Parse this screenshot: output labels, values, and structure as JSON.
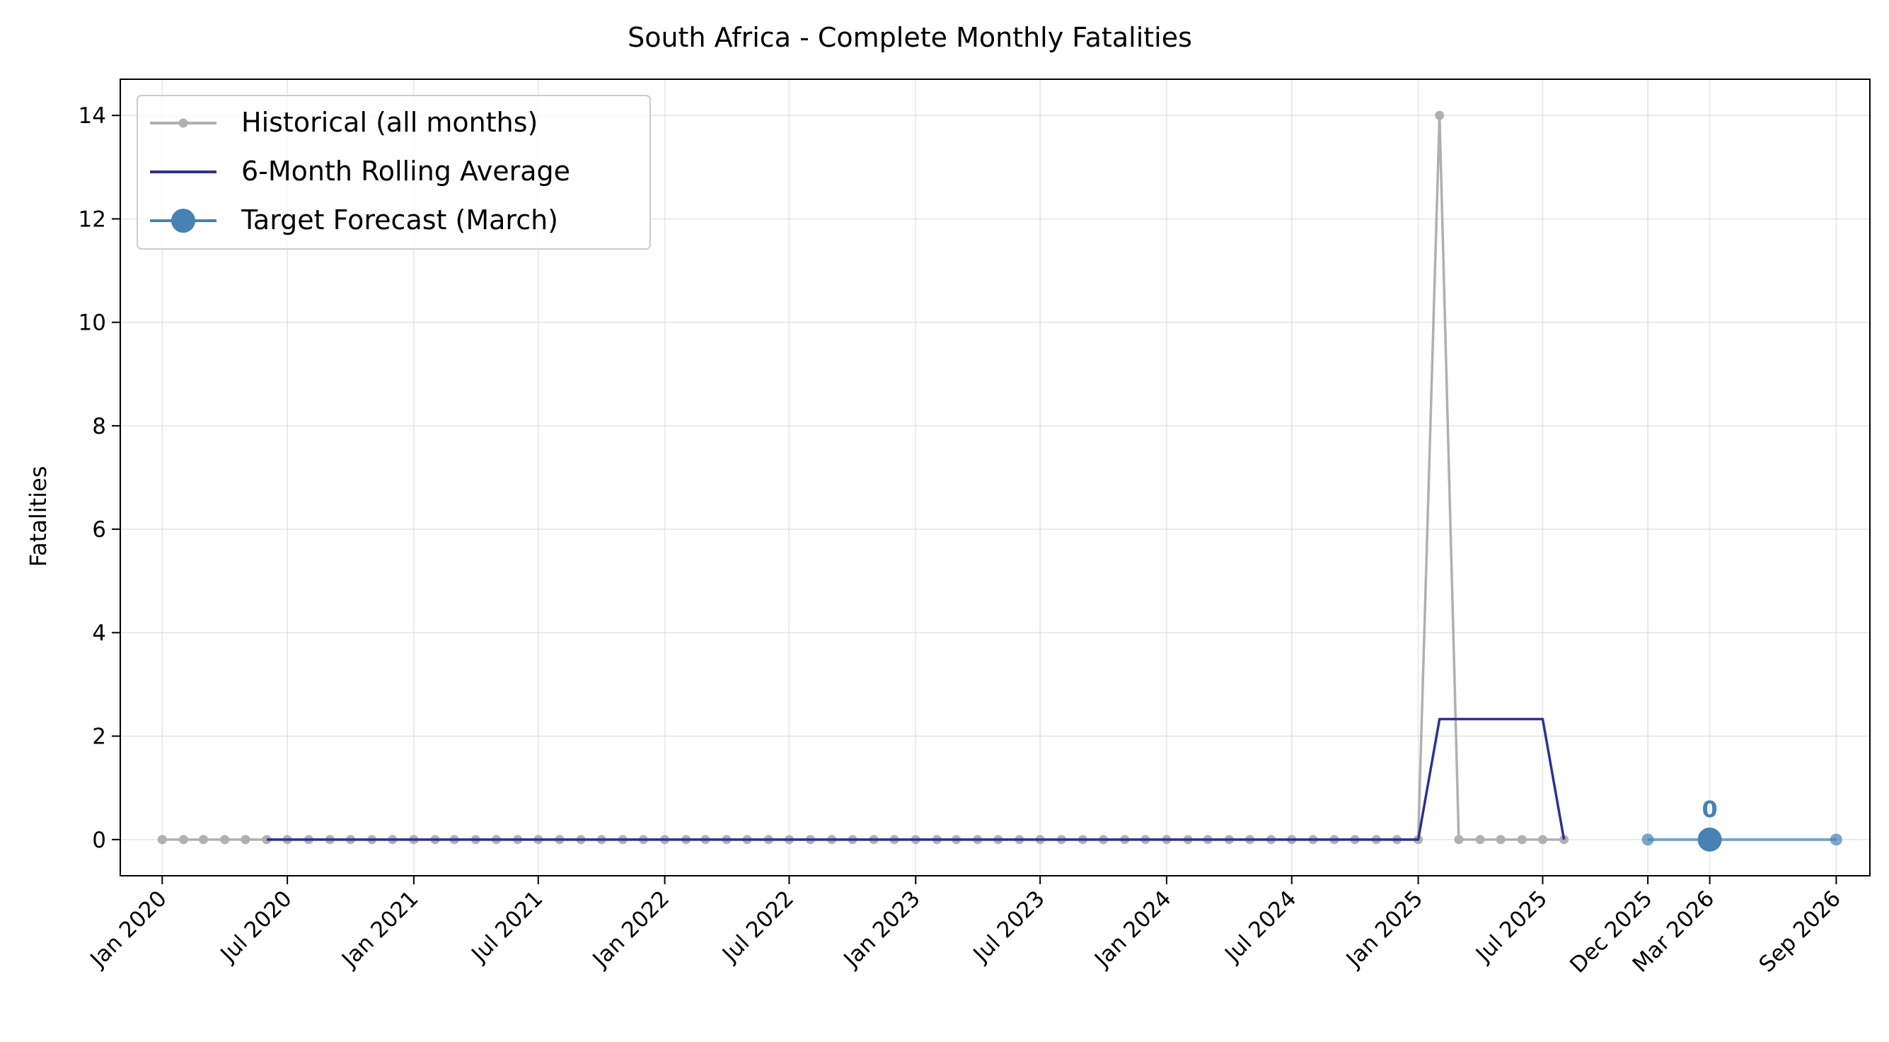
{
  "chart_data": {
    "type": "line",
    "title": "South Africa - Complete Monthly Fatalities",
    "xlabel": "",
    "ylabel": "Fatalities",
    "ylim": [
      -0.7,
      14.7
    ],
    "xlim": [
      "2019-11-01",
      "2026-10-20"
    ],
    "grid": true,
    "legend_position": "top-left",
    "x_tick_labels": [
      {
        "date": "2020-01-01",
        "label": "Jan 2020"
      },
      {
        "date": "2020-07-01",
        "label": "Jul 2020"
      },
      {
        "date": "2021-01-01",
        "label": "Jan 2021"
      },
      {
        "date": "2021-07-01",
        "label": "Jul 2021"
      },
      {
        "date": "2022-01-01",
        "label": "Jan 2022"
      },
      {
        "date": "2022-07-01",
        "label": "Jul 2022"
      },
      {
        "date": "2023-01-01",
        "label": "Jan 2023"
      },
      {
        "date": "2023-07-01",
        "label": "Jul 2023"
      },
      {
        "date": "2024-01-01",
        "label": "Jan 2024"
      },
      {
        "date": "2024-07-01",
        "label": "Jul 2024"
      },
      {
        "date": "2025-01-01",
        "label": "Jan 2025"
      },
      {
        "date": "2025-07-01",
        "label": "Jul 2025"
      },
      {
        "date": "2025-12-01",
        "label": "Dec 2025"
      },
      {
        "date": "2026-03-01",
        "label": "Mar 2026"
      },
      {
        "date": "2026-09-01",
        "label": "Sep 2026"
      }
    ],
    "y_ticks": [
      0,
      2,
      4,
      6,
      8,
      10,
      12,
      14
    ],
    "series": [
      {
        "name": "Historical (all months)",
        "color": "#b0b0b0",
        "marker": "small-circle",
        "points": [
          {
            "x": "2020-01-01",
            "y": 0
          },
          {
            "x": "2020-02-01",
            "y": 0
          },
          {
            "x": "2020-03-01",
            "y": 0
          },
          {
            "x": "2020-04-01",
            "y": 0
          },
          {
            "x": "2020-05-01",
            "y": 0
          },
          {
            "x": "2020-06-01",
            "y": 0
          },
          {
            "x": "2020-07-01",
            "y": 0
          },
          {
            "x": "2020-08-01",
            "y": 0
          },
          {
            "x": "2020-09-01",
            "y": 0
          },
          {
            "x": "2020-10-01",
            "y": 0
          },
          {
            "x": "2020-11-01",
            "y": 0
          },
          {
            "x": "2020-12-01",
            "y": 0
          },
          {
            "x": "2021-01-01",
            "y": 0
          },
          {
            "x": "2021-02-01",
            "y": 0
          },
          {
            "x": "2021-03-01",
            "y": 0
          },
          {
            "x": "2021-04-01",
            "y": 0
          },
          {
            "x": "2021-05-01",
            "y": 0
          },
          {
            "x": "2021-06-01",
            "y": 0
          },
          {
            "x": "2021-07-01",
            "y": 0
          },
          {
            "x": "2021-08-01",
            "y": 0
          },
          {
            "x": "2021-09-01",
            "y": 0
          },
          {
            "x": "2021-10-01",
            "y": 0
          },
          {
            "x": "2021-11-01",
            "y": 0
          },
          {
            "x": "2021-12-01",
            "y": 0
          },
          {
            "x": "2022-01-01",
            "y": 0
          },
          {
            "x": "2022-02-01",
            "y": 0
          },
          {
            "x": "2022-03-01",
            "y": 0
          },
          {
            "x": "2022-04-01",
            "y": 0
          },
          {
            "x": "2022-05-01",
            "y": 0
          },
          {
            "x": "2022-06-01",
            "y": 0
          },
          {
            "x": "2022-07-01",
            "y": 0
          },
          {
            "x": "2022-08-01",
            "y": 0
          },
          {
            "x": "2022-09-01",
            "y": 0
          },
          {
            "x": "2022-10-01",
            "y": 0
          },
          {
            "x": "2022-11-01",
            "y": 0
          },
          {
            "x": "2022-12-01",
            "y": 0
          },
          {
            "x": "2023-01-01",
            "y": 0
          },
          {
            "x": "2023-02-01",
            "y": 0
          },
          {
            "x": "2023-03-01",
            "y": 0
          },
          {
            "x": "2023-04-01",
            "y": 0
          },
          {
            "x": "2023-05-01",
            "y": 0
          },
          {
            "x": "2023-06-01",
            "y": 0
          },
          {
            "x": "2023-07-01",
            "y": 0
          },
          {
            "x": "2023-08-01",
            "y": 0
          },
          {
            "x": "2023-09-01",
            "y": 0
          },
          {
            "x": "2023-10-01",
            "y": 0
          },
          {
            "x": "2023-11-01",
            "y": 0
          },
          {
            "x": "2023-12-01",
            "y": 0
          },
          {
            "x": "2024-01-01",
            "y": 0
          },
          {
            "x": "2024-02-01",
            "y": 0
          },
          {
            "x": "2024-03-01",
            "y": 0
          },
          {
            "x": "2024-04-01",
            "y": 0
          },
          {
            "x": "2024-05-01",
            "y": 0
          },
          {
            "x": "2024-06-01",
            "y": 0
          },
          {
            "x": "2024-07-01",
            "y": 0
          },
          {
            "x": "2024-08-01",
            "y": 0
          },
          {
            "x": "2024-09-01",
            "y": 0
          },
          {
            "x": "2024-10-01",
            "y": 0
          },
          {
            "x": "2024-11-01",
            "y": 0
          },
          {
            "x": "2024-12-01",
            "y": 0
          },
          {
            "x": "2025-01-01",
            "y": 0
          },
          {
            "x": "2025-02-01",
            "y": 14
          },
          {
            "x": "2025-03-01",
            "y": 0
          },
          {
            "x": "2025-04-01",
            "y": 0
          },
          {
            "x": "2025-05-01",
            "y": 0
          },
          {
            "x": "2025-06-01",
            "y": 0
          },
          {
            "x": "2025-07-01",
            "y": 0
          },
          {
            "x": "2025-08-01",
            "y": 0
          }
        ]
      },
      {
        "name": "6-Month Rolling Average",
        "color": "#2e3192",
        "marker": "none",
        "points": [
          {
            "x": "2020-06-01",
            "y": 0
          },
          {
            "x": "2025-01-01",
            "y": 0
          },
          {
            "x": "2025-02-01",
            "y": 2.33
          },
          {
            "x": "2025-07-01",
            "y": 2.33
          },
          {
            "x": "2025-08-01",
            "y": 0
          }
        ]
      },
      {
        "name": "Target Forecast (March)",
        "color": "#4682b4",
        "marker": "circle",
        "points": [
          {
            "x": "2025-12-01",
            "y": 0
          },
          {
            "x": "2026-03-01",
            "y": 0
          },
          {
            "x": "2026-09-01",
            "y": 0
          }
        ],
        "highlight": {
          "x": "2026-03-01",
          "y": 0,
          "label": "0"
        }
      }
    ]
  }
}
